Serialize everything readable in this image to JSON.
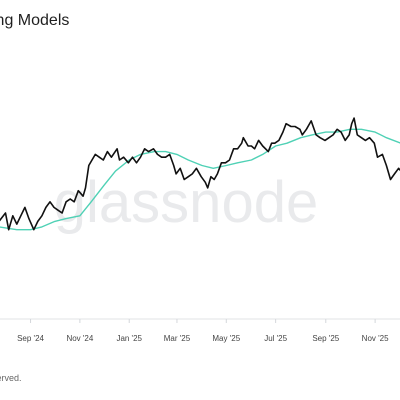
{
  "header": {
    "title": "ing Models"
  },
  "watermark": "glassnode",
  "footer": {
    "text": "served."
  },
  "colors": {
    "price": "#111111",
    "model": "#4fd1b5",
    "axis": "#e1e3e6",
    "watermark": "#e9eaec"
  },
  "chart_data": {
    "type": "line",
    "title": "ing Models",
    "xlabel": "",
    "ylabel": "",
    "grid": false,
    "legend": "none",
    "x_tick_labels": [
      "Sep '24",
      "Nov '24",
      "Jan '25",
      "Mar '25",
      "May '25",
      "Jul '25",
      "Sep '25",
      "Nov '25"
    ],
    "x_ticks": [
      "2024-09-01",
      "2024-11-01",
      "2025-01-01",
      "2025-03-01",
      "2025-05-01",
      "2025-07-01",
      "2025-09-01",
      "2025-11-01"
    ],
    "ylim": [
      0,
      100
    ],
    "series": [
      {
        "color": "#111111",
        "points": [
          [
            "2024-07-24",
            35
          ],
          [
            "2024-08-01",
            38
          ],
          [
            "2024-08-05",
            32
          ],
          [
            "2024-08-10",
            37
          ],
          [
            "2024-08-15",
            34
          ],
          [
            "2024-08-20",
            37
          ],
          [
            "2024-08-25",
            40
          ],
          [
            "2024-08-30",
            36
          ],
          [
            "2024-09-05",
            32
          ],
          [
            "2024-09-10",
            35
          ],
          [
            "2024-09-15",
            37
          ],
          [
            "2024-09-20",
            40
          ],
          [
            "2024-09-25",
            42
          ],
          [
            "2024-09-30",
            40
          ],
          [
            "2024-10-05",
            39
          ],
          [
            "2024-10-10",
            38
          ],
          [
            "2024-10-15",
            42
          ],
          [
            "2024-10-20",
            43
          ],
          [
            "2024-10-25",
            42
          ],
          [
            "2024-10-30",
            46
          ],
          [
            "2024-11-05",
            44
          ],
          [
            "2024-11-08",
            47
          ],
          [
            "2024-11-12",
            55
          ],
          [
            "2024-11-16",
            57
          ],
          [
            "2024-11-20",
            59
          ],
          [
            "2024-11-25",
            58
          ],
          [
            "2024-11-30",
            57
          ],
          [
            "2024-12-05",
            60
          ],
          [
            "2024-12-10",
            58
          ],
          [
            "2024-12-17",
            61
          ],
          [
            "2024-12-20",
            57
          ],
          [
            "2024-12-25",
            58
          ],
          [
            "2024-12-31",
            56
          ],
          [
            "2025-01-05",
            58
          ],
          [
            "2025-01-10",
            56
          ],
          [
            "2025-01-15",
            58
          ],
          [
            "2025-01-20",
            61
          ],
          [
            "2025-01-25",
            60
          ],
          [
            "2025-01-31",
            61
          ],
          [
            "2025-02-05",
            59
          ],
          [
            "2025-02-10",
            58
          ],
          [
            "2025-02-15",
            58
          ],
          [
            "2025-02-20",
            59
          ],
          [
            "2025-02-25",
            55
          ],
          [
            "2025-02-28",
            52
          ],
          [
            "2025-03-05",
            54
          ],
          [
            "2025-03-10",
            50
          ],
          [
            "2025-03-15",
            51
          ],
          [
            "2025-03-20",
            52
          ],
          [
            "2025-03-25",
            54
          ],
          [
            "2025-03-31",
            51
          ],
          [
            "2025-04-05",
            49
          ],
          [
            "2025-04-08",
            47
          ],
          [
            "2025-04-12",
            51
          ],
          [
            "2025-04-16",
            50
          ],
          [
            "2025-04-20",
            52
          ],
          [
            "2025-04-25",
            56
          ],
          [
            "2025-04-30",
            56
          ],
          [
            "2025-05-05",
            57
          ],
          [
            "2025-05-10",
            61
          ],
          [
            "2025-05-15",
            61
          ],
          [
            "2025-05-20",
            63
          ],
          [
            "2025-05-22",
            65
          ],
          [
            "2025-05-28",
            62
          ],
          [
            "2025-06-01",
            62
          ],
          [
            "2025-06-05",
            61
          ],
          [
            "2025-06-10",
            64
          ],
          [
            "2025-06-15",
            62
          ],
          [
            "2025-06-22",
            60
          ],
          [
            "2025-06-26",
            63
          ],
          [
            "2025-06-30",
            63
          ],
          [
            "2025-07-05",
            64
          ],
          [
            "2025-07-10",
            67
          ],
          [
            "2025-07-14",
            70
          ],
          [
            "2025-07-20",
            69
          ],
          [
            "2025-07-25",
            69
          ],
          [
            "2025-07-31",
            68
          ],
          [
            "2025-08-03",
            66
          ],
          [
            "2025-08-08",
            68
          ],
          [
            "2025-08-14",
            71
          ],
          [
            "2025-08-20",
            66
          ],
          [
            "2025-08-25",
            65
          ],
          [
            "2025-08-31",
            64
          ],
          [
            "2025-09-05",
            65
          ],
          [
            "2025-09-10",
            66
          ],
          [
            "2025-09-15",
            68
          ],
          [
            "2025-09-20",
            67
          ],
          [
            "2025-09-25",
            64
          ],
          [
            "2025-09-30",
            66
          ],
          [
            "2025-10-03",
            70
          ],
          [
            "2025-10-06",
            72
          ],
          [
            "2025-10-10",
            66
          ],
          [
            "2025-10-15",
            65
          ],
          [
            "2025-10-20",
            64
          ],
          [
            "2025-10-25",
            65
          ],
          [
            "2025-10-31",
            63
          ],
          [
            "2025-11-04",
            58
          ],
          [
            "2025-11-10",
            59
          ],
          [
            "2025-11-15",
            55
          ],
          [
            "2025-11-20",
            50
          ],
          [
            "2025-11-25",
            52
          ],
          [
            "2025-11-30",
            54
          ],
          [
            "2025-12-03",
            53
          ]
        ]
      },
      {
        "color": "#4fd1b5",
        "points": [
          [
            "2024-07-24",
            33
          ],
          [
            "2024-08-15",
            32
          ],
          [
            "2024-09-01",
            32
          ],
          [
            "2024-09-15",
            33
          ],
          [
            "2024-10-01",
            35
          ],
          [
            "2024-10-15",
            36
          ],
          [
            "2024-11-01",
            37
          ],
          [
            "2024-11-15",
            42
          ],
          [
            "2024-12-01",
            48
          ],
          [
            "2024-12-15",
            53
          ],
          [
            "2025-01-01",
            57
          ],
          [
            "2025-01-15",
            59
          ],
          [
            "2025-02-01",
            60
          ],
          [
            "2025-02-15",
            60
          ],
          [
            "2025-03-01",
            59
          ],
          [
            "2025-03-15",
            57
          ],
          [
            "2025-04-01",
            55
          ],
          [
            "2025-04-15",
            54
          ],
          [
            "2025-05-01",
            55
          ],
          [
            "2025-05-15",
            56
          ],
          [
            "2025-06-01",
            57
          ],
          [
            "2025-06-15",
            59
          ],
          [
            "2025-07-01",
            62
          ],
          [
            "2025-07-15",
            63
          ],
          [
            "2025-08-01",
            65
          ],
          [
            "2025-08-15",
            66
          ],
          [
            "2025-09-01",
            67
          ],
          [
            "2025-09-15",
            67
          ],
          [
            "2025-10-01",
            68
          ],
          [
            "2025-10-15",
            68
          ],
          [
            "2025-11-01",
            67
          ],
          [
            "2025-11-15",
            65
          ],
          [
            "2025-12-03",
            63
          ]
        ]
      }
    ]
  }
}
